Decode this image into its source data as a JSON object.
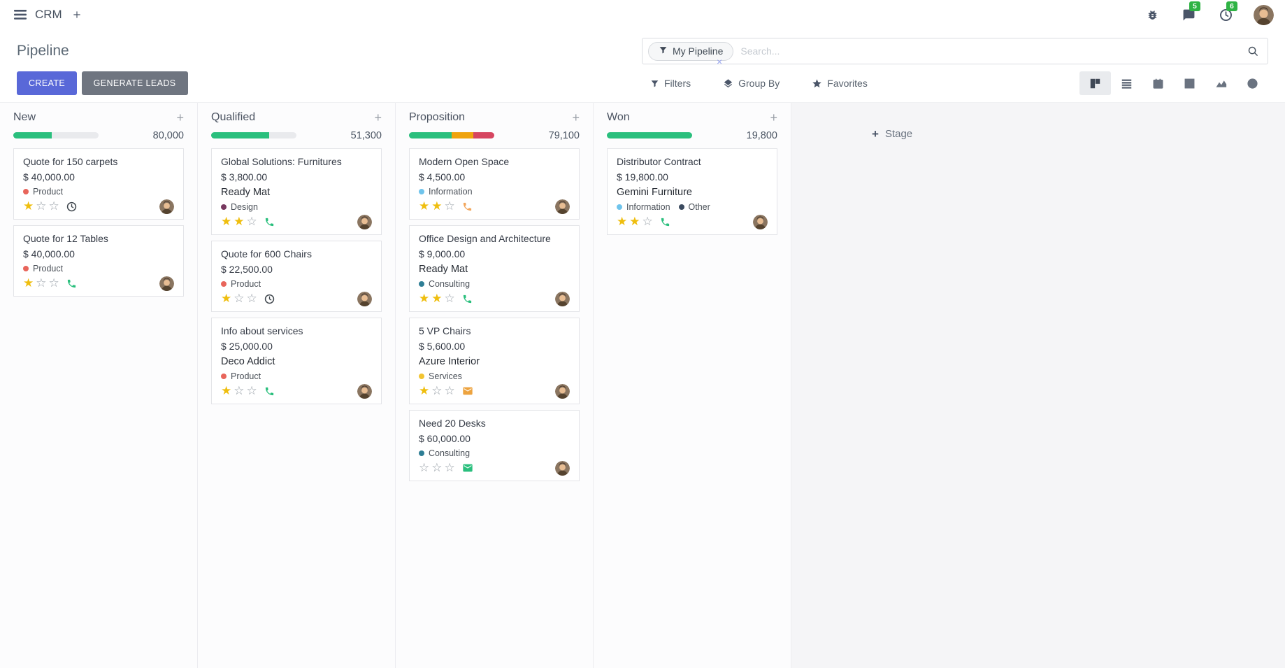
{
  "navbar": {
    "app_name": "CRM",
    "message_badge": "5",
    "activity_badge": "6"
  },
  "control_panel": {
    "title": "Pipeline",
    "create_label": "CREATE",
    "generate_leads_label": "GENERATE LEADS",
    "search": {
      "facet_label": "My Pipeline",
      "placeholder": "Search..."
    },
    "menus": [
      {
        "label": "Filters",
        "icon": "filter-funnel-icon"
      },
      {
        "label": "Group By",
        "icon": "layers-icon"
      },
      {
        "label": "Favorites",
        "icon": "star-icon"
      }
    ],
    "view_switcher": [
      {
        "name": "kanban",
        "active": true
      },
      {
        "name": "list",
        "active": false
      },
      {
        "name": "calendar",
        "active": false
      },
      {
        "name": "pivot",
        "active": false
      },
      {
        "name": "graph",
        "active": false
      },
      {
        "name": "activity",
        "active": false
      }
    ]
  },
  "colors": {
    "primary": "#5968d8",
    "secondary": "#6f7580",
    "success": "#2abf7d",
    "warning": "#efa30d",
    "danger": "#d64560",
    "badge_green": "#2fb344",
    "star_filled": "#efbe0e",
    "star_empty": "#9aa1a9"
  },
  "kanban": {
    "add_stage_label": "Stage",
    "columns": [
      {
        "name": "New",
        "counter": "80,000",
        "progress": [
          {
            "color": "#2abf7d",
            "pct": 45
          }
        ],
        "cards": [
          {
            "title": "Quote for 150 carpets",
            "amount": "$ 40,000.00",
            "partner": null,
            "tags": [
              {
                "label": "Product",
                "color": "#e8655b"
              }
            ],
            "stars": 1,
            "activity": {
              "icon": "clock",
              "color": "#41484f"
            }
          },
          {
            "title": "Quote for 12 Tables",
            "amount": "$ 40,000.00",
            "partner": null,
            "tags": [
              {
                "label": "Product",
                "color": "#e8655b"
              }
            ],
            "stars": 1,
            "activity": {
              "icon": "phone",
              "color": "#2abf7d"
            }
          }
        ]
      },
      {
        "name": "Qualified",
        "counter": "51,300",
        "progress": [
          {
            "color": "#2abf7d",
            "pct": 68
          }
        ],
        "cards": [
          {
            "title": "Global Solutions: Furnitures",
            "amount": "$ 3,800.00",
            "partner": "Ready Mat",
            "tags": [
              {
                "label": "Design",
                "color": "#77385f"
              }
            ],
            "stars": 2,
            "activity": {
              "icon": "phone",
              "color": "#2abf7d"
            }
          },
          {
            "title": "Quote for 600 Chairs",
            "amount": "$ 22,500.00",
            "partner": null,
            "tags": [
              {
                "label": "Product",
                "color": "#e8655b"
              }
            ],
            "stars": 1,
            "activity": {
              "icon": "clock",
              "color": "#41484f"
            }
          },
          {
            "title": "Info about services",
            "amount": "$ 25,000.00",
            "partner": "Deco Addict",
            "tags": [
              {
                "label": "Product",
                "color": "#e8655b"
              }
            ],
            "stars": 1,
            "activity": {
              "icon": "phone",
              "color": "#2abf7d"
            }
          }
        ]
      },
      {
        "name": "Proposition",
        "counter": "79,100",
        "progress": [
          {
            "color": "#2abf7d",
            "pct": 50
          },
          {
            "color": "#efa30d",
            "pct": 25
          },
          {
            "color": "#d64560",
            "pct": 25
          }
        ],
        "cards": [
          {
            "title": "Modern Open Space",
            "amount": "$ 4,500.00",
            "partner": null,
            "tags": [
              {
                "label": "Information",
                "color": "#6fc4ec"
              }
            ],
            "stars": 2,
            "activity": {
              "icon": "phone",
              "color": "#f2a65c"
            }
          },
          {
            "title": "Office Design and Architecture",
            "amount": "$ 9,000.00",
            "partner": "Ready Mat",
            "tags": [
              {
                "label": "Consulting",
                "color": "#2e7e95"
              }
            ],
            "stars": 2,
            "activity": {
              "icon": "phone",
              "color": "#2abf7d"
            }
          },
          {
            "title": "5 VP Chairs",
            "amount": "$ 5,600.00",
            "partner": "Azure Interior",
            "tags": [
              {
                "label": "Services",
                "color": "#f2c431"
              }
            ],
            "stars": 1,
            "activity": {
              "icon": "envelope",
              "color": "#eda33f"
            }
          },
          {
            "title": "Need 20 Desks",
            "amount": "$ 60,000.00",
            "partner": null,
            "tags": [
              {
                "label": "Consulting",
                "color": "#2e7e95"
              }
            ],
            "stars": 0,
            "activity": {
              "icon": "envelope",
              "color": "#2abf7d"
            }
          }
        ]
      },
      {
        "name": "Won",
        "counter": "19,800",
        "progress": [
          {
            "color": "#2abf7d",
            "pct": 100
          }
        ],
        "cards": [
          {
            "title": "Distributor Contract",
            "amount": "$ 19,800.00",
            "partner": "Gemini Furniture",
            "tags": [
              {
                "label": "Information",
                "color": "#6fc4ec"
              },
              {
                "label": "Other",
                "color": "#3b4a5f"
              }
            ],
            "stars": 2,
            "activity": {
              "icon": "phone",
              "color": "#2abf7d"
            }
          }
        ]
      }
    ]
  }
}
